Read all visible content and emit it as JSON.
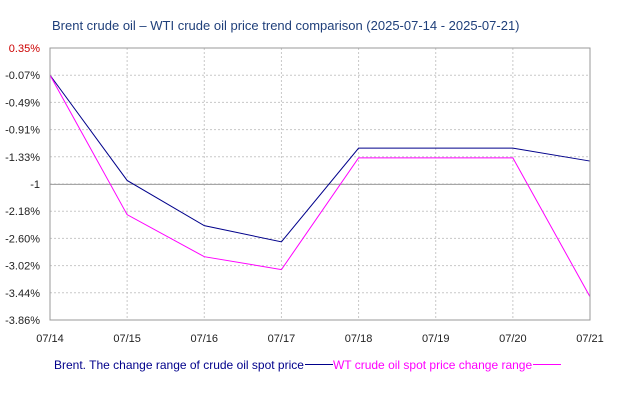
{
  "chart_data": {
    "type": "line",
    "title": "Brent crude oil – WTI crude oil price trend comparison (2025-07-14 - 2025-07-21)",
    "categories": [
      "07/14",
      "07/15",
      "07/16",
      "07/17",
      "07/18",
      "07/19",
      "07/20",
      "07/21"
    ],
    "y_ticks": [
      "0.35%",
      "-0.07%",
      "-0.49%",
      "-0.91%",
      "-1.33%",
      "-1",
      "-2.18%",
      "-2.60%",
      "-3.02%",
      "-3.44%",
      "-3.86%"
    ],
    "ylim": [
      -3.86,
      0.35
    ],
    "reference_line": -1.76,
    "grid": true,
    "legend_position": "bottom",
    "series": [
      {
        "name": "Brent. The change range of crude oil spot price",
        "color": "#00008b",
        "values": [
          -0.07,
          -1.7,
          -2.4,
          -2.65,
          -1.2,
          null,
          -1.2,
          -1.4
        ]
      },
      {
        "name": "WT crude oil spot price change range",
        "color": "#ff00ff",
        "values": [
          -0.07,
          -2.23,
          -2.88,
          -3.08,
          -1.35,
          null,
          -1.35,
          -3.5
        ]
      }
    ]
  }
}
